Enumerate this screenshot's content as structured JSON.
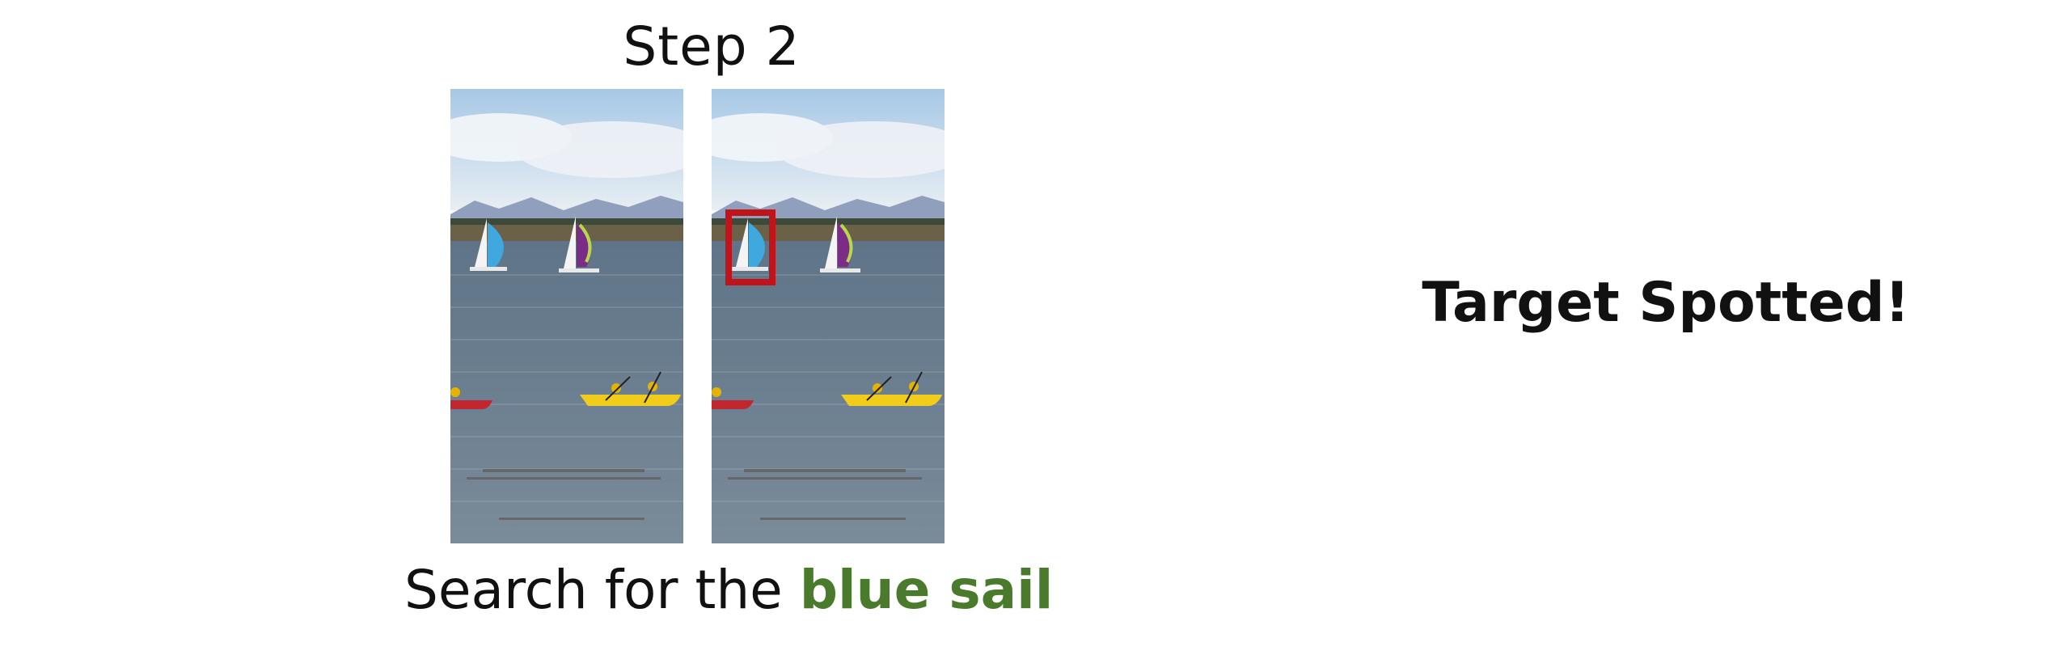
{
  "step_title": "Step 2",
  "caption": {
    "prefix": "Search for the",
    "target": "blue sail"
  },
  "status_text": "Target Spotted!",
  "colors": {
    "target_text": "#4a7a2c",
    "box_border": "#c0141a",
    "sky": "#b7d3ea",
    "water": "#6f8597"
  },
  "icons": [
    "sailboat-icon",
    "kayak-icon",
    "red-selection-box"
  ]
}
